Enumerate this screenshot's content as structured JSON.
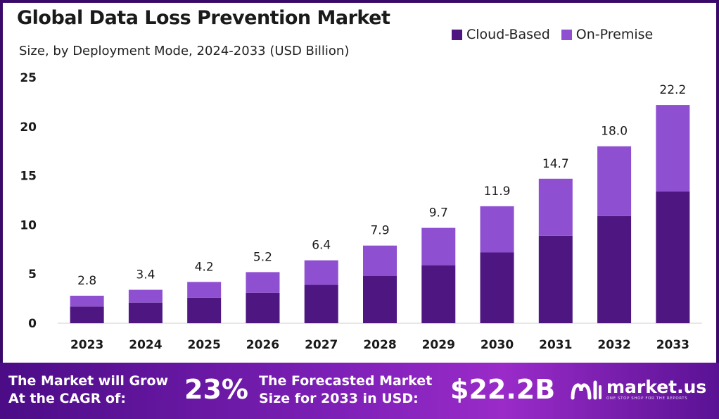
{
  "header": {
    "title": "Global Data Loss Prevention Market",
    "subtitle": "Size, by Deployment Mode, 2024-2033 (USD Billion)"
  },
  "legend": {
    "items": [
      {
        "label": "Cloud-Based",
        "color": "#4d1680"
      },
      {
        "label": "On-Premise",
        "color": "#8e4fd0"
      }
    ],
    "placement": "top-right"
  },
  "chart_data": {
    "type": "bar",
    "stacked": true,
    "title": "Global Data Loss Prevention Market",
    "subtitle": "Size, by Deployment Mode, 2024-2033 (USD Billion)",
    "xlabel": "",
    "ylabel": "",
    "ylim": [
      0,
      25
    ],
    "yticks": [
      0,
      5,
      10,
      15,
      20,
      25
    ],
    "grid": false,
    "categories": [
      "2023",
      "2024",
      "2025",
      "2026",
      "2027",
      "2028",
      "2029",
      "2030",
      "2031",
      "2032",
      "2033"
    ],
    "totals": [
      2.8,
      3.4,
      4.2,
      5.2,
      6.4,
      7.9,
      9.7,
      11.9,
      14.7,
      18.0,
      22.2
    ],
    "total_labels": [
      "2.8",
      "3.4",
      "4.2",
      "5.2",
      "6.4",
      "7.9",
      "9.7",
      "11.9",
      "14.7",
      "18.0",
      "22.2"
    ],
    "series": [
      {
        "name": "Cloud-Based",
        "color": "#4d1680",
        "values": [
          1.7,
          2.1,
          2.6,
          3.1,
          3.9,
          4.8,
          5.9,
          7.2,
          8.9,
          10.9,
          13.4
        ]
      },
      {
        "name": "On-Premise",
        "color": "#8e4fd0",
        "values": [
          1.1,
          1.3,
          1.6,
          2.1,
          2.5,
          3.1,
          3.8,
          4.7,
          5.8,
          7.1,
          8.8
        ]
      }
    ]
  },
  "banner": {
    "cagr_text_line1": "The Market will Grow",
    "cagr_text_line2": "At the CAGR of:",
    "cagr_value": "23%",
    "forecast_text_line1": "The Forecasted Market",
    "forecast_text_line2": "Size for 2033 in USD:",
    "forecast_value": "$22.2B",
    "logo_name": "market.us",
    "logo_tagline": "ONE STOP SHOP FOR THE REPORTS"
  }
}
